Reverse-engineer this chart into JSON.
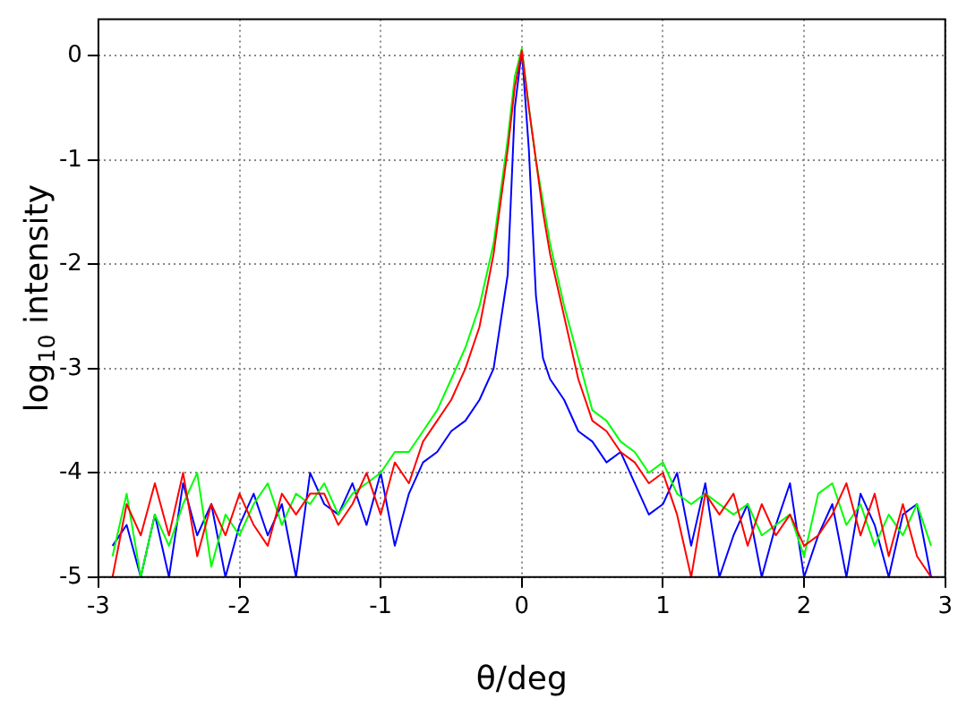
{
  "chart_data": {
    "type": "line",
    "xlabel": "θ/deg",
    "ylabel": "log$_{10}$ intensity",
    "xlim": [
      -3,
      3
    ],
    "ylim": [
      -5,
      0.35
    ],
    "xticks": [
      -3,
      -2,
      -1,
      0,
      1,
      2,
      3
    ],
    "yticks": [
      -5,
      -4,
      -3,
      -2,
      -1,
      0
    ],
    "grid": true,
    "legend": false,
    "marker": "none",
    "line_style": "solid",
    "x": [
      -2.9,
      -2.8,
      -2.7,
      -2.6,
      -2.5,
      -2.4,
      -2.3,
      -2.2,
      -2.1,
      -2.0,
      -1.9,
      -1.8,
      -1.7,
      -1.6,
      -1.5,
      -1.4,
      -1.3,
      -1.2,
      -1.1,
      -1.0,
      -0.9,
      -0.8,
      -0.7,
      -0.6,
      -0.5,
      -0.4,
      -0.3,
      -0.2,
      -0.1,
      -0.05,
      0,
      0.05,
      0.1,
      0.15,
      0.2,
      0.3,
      0.4,
      0.5,
      0.6,
      0.7,
      0.8,
      0.9,
      1.0,
      1.1,
      1.2,
      1.3,
      1.4,
      1.5,
      1.6,
      1.7,
      1.8,
      1.9,
      2.0,
      2.1,
      2.2,
      2.3,
      2.4,
      2.5,
      2.6,
      2.7,
      2.8,
      2.9
    ],
    "series": [
      {
        "color": "#ff0000",
        "values": [
          -5,
          -4.3,
          -4.6,
          -4.1,
          -4.6,
          -4.0,
          -4.8,
          -4.3,
          -4.6,
          -4.2,
          -4.5,
          -4.7,
          -4.2,
          -4.4,
          -4.2,
          -4.2,
          -4.5,
          -4.3,
          -4.0,
          -4.4,
          -3.9,
          -4.1,
          -3.7,
          -3.5,
          -3.3,
          -3.0,
          -2.6,
          -1.9,
          -0.9,
          -0.3,
          0.05,
          -0.5,
          -1.0,
          -1.5,
          -1.9,
          -2.5,
          -3.1,
          -3.5,
          -3.6,
          -3.8,
          -3.9,
          -4.1,
          -4.0,
          -4.4,
          -5,
          -4.2,
          -4.4,
          -4.2,
          -4.7,
          -4.3,
          -4.6,
          -4.4,
          -4.7,
          -4.6,
          -4.4,
          -4.1,
          -4.6,
          -4.2,
          -4.8,
          -4.3,
          -4.8,
          -5
        ]
      },
      {
        "color": "#00ff00",
        "values": [
          -4.8,
          -4.2,
          -5,
          -4.4,
          -4.7,
          -4.3,
          -4.0,
          -4.9,
          -4.4,
          -4.6,
          -4.3,
          -4.1,
          -4.5,
          -4.2,
          -4.3,
          -4.1,
          -4.4,
          -4.2,
          -4.1,
          -4.0,
          -3.8,
          -3.8,
          -3.6,
          -3.4,
          -3.1,
          -2.8,
          -2.4,
          -1.8,
          -0.8,
          -0.2,
          0.07,
          -0.5,
          -1.0,
          -1.4,
          -1.8,
          -2.4,
          -2.9,
          -3.4,
          -3.5,
          -3.7,
          -3.8,
          -4.0,
          -3.9,
          -4.2,
          -4.3,
          -4.2,
          -4.3,
          -4.4,
          -4.3,
          -4.6,
          -4.5,
          -4.4,
          -4.8,
          -4.2,
          -4.1,
          -4.5,
          -4.3,
          -4.7,
          -4.4,
          -4.6,
          -4.3,
          -4.7
        ]
      },
      {
        "color": "#0000ff",
        "values": [
          -4.7,
          -4.5,
          -5,
          -4.4,
          -5,
          -4.1,
          -4.6,
          -4.3,
          -5,
          -4.5,
          -4.2,
          -4.6,
          -4.3,
          -5,
          -4.0,
          -4.3,
          -4.4,
          -4.1,
          -4.5,
          -4.0,
          -4.7,
          -4.2,
          -3.9,
          -3.8,
          -3.6,
          -3.5,
          -3.3,
          -3.0,
          -2.1,
          -0.5,
          0.05,
          -0.9,
          -2.3,
          -2.9,
          -3.1,
          -3.3,
          -3.6,
          -3.7,
          -3.9,
          -3.8,
          -4.1,
          -4.4,
          -4.3,
          -4.0,
          -4.7,
          -4.1,
          -5,
          -4.6,
          -4.3,
          -5,
          -4.5,
          -4.1,
          -5,
          -4.6,
          -4.3,
          -5,
          -4.2,
          -4.5,
          -5,
          -4.4,
          -4.3,
          -5
        ]
      }
    ]
  }
}
